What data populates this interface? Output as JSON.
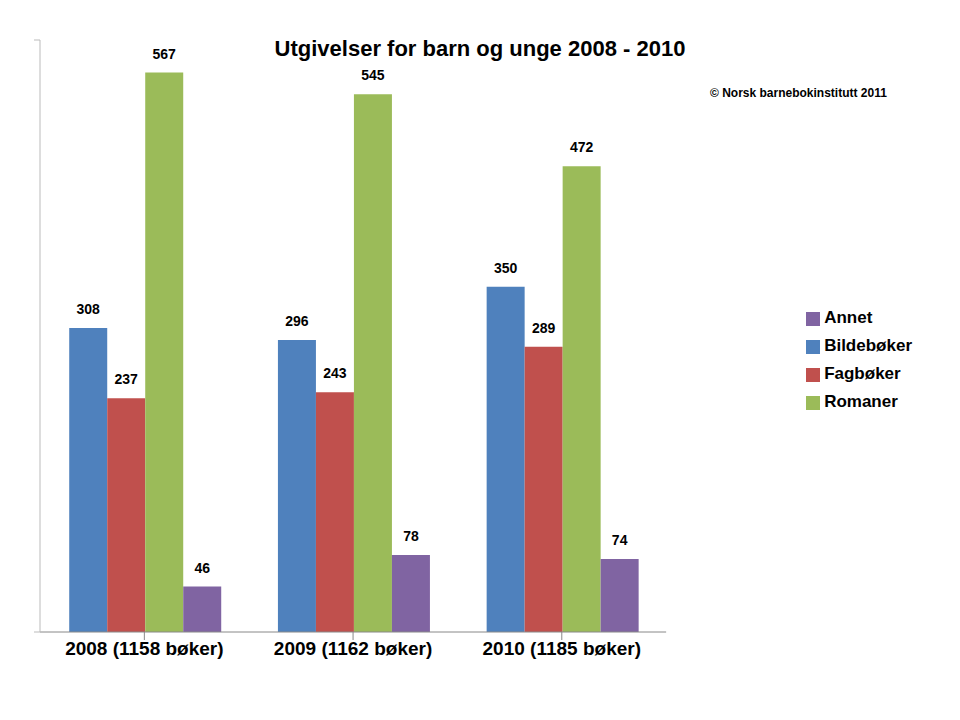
{
  "chart_data": {
    "type": "bar",
    "title": "Utgivelser for barn og unge 2008 - 2010",
    "annotation": "© Norsk barnebokinstitutt 2011",
    "categories": [
      "2008 (1158 bøker)",
      "2009 (1162 bøker)",
      "2010 (1185 bøker)"
    ],
    "series": [
      {
        "name": "Bildebøker",
        "color": "#4f81bd",
        "values": [
          308,
          296,
          350
        ]
      },
      {
        "name": "Fagbøker",
        "color": "#c0504d",
        "values": [
          237,
          243,
          289
        ]
      },
      {
        "name": "Romaner",
        "color": "#9bbb59",
        "values": [
          567,
          545,
          472
        ]
      },
      {
        "name": "Annet",
        "color": "#8064a2",
        "values": [
          46,
          78,
          74
        ]
      }
    ],
    "ylim": [
      0,
      600
    ],
    "yticks": [
      0,
      600
    ],
    "data_labels": true,
    "tick_labels": "x",
    "legend": "right",
    "grid": false
  }
}
